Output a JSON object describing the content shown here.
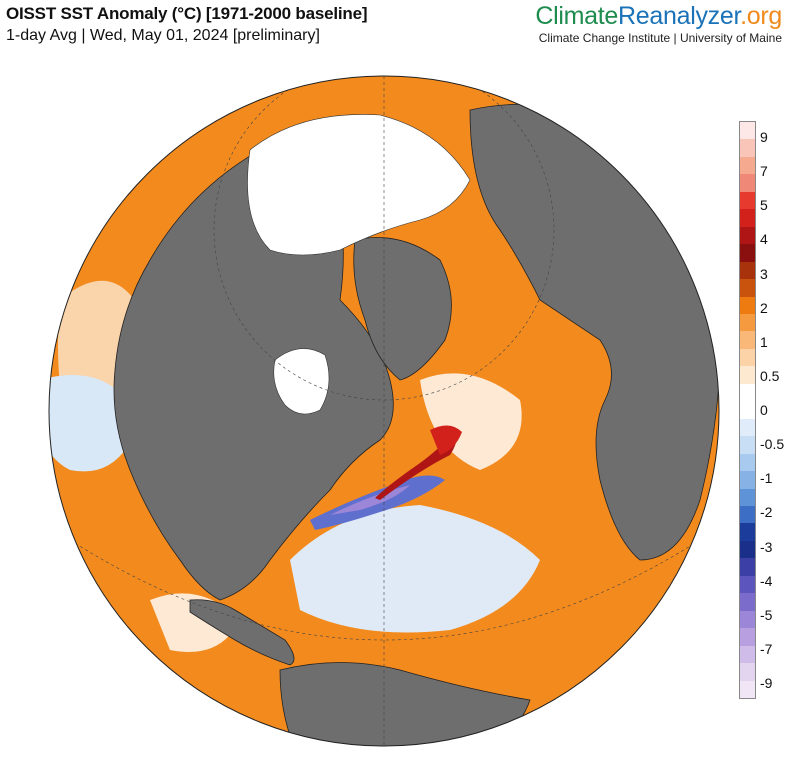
{
  "header": {
    "title": "OISST SST Anomaly (°C) [1971-2000 baseline]",
    "subtitle": "1-day Avg | Wed, May 01, 2024 [preliminary]"
  },
  "brand": {
    "part1": "Climate",
    "part2": "Reanalyzer",
    "part3": ".org",
    "tagline": "Climate Change Institute | University of Maine",
    "colors": {
      "climate": "#1e8c4e",
      "reanalyzer": "#1a72b8",
      "org": "#f08a1c"
    }
  },
  "map": {
    "projection": "orthographic",
    "center": "North Atlantic",
    "colors": {
      "land": "#6e6e6e",
      "sea_ice": "#ffffff",
      "warm": "#f28a1e",
      "cool": "#bcd9f2"
    }
  },
  "legend": {
    "tick_labels": [
      "9",
      "7",
      "5",
      "4",
      "3",
      "2",
      "1",
      "0.5",
      "0",
      "-0.5",
      "-1",
      "-2",
      "-3",
      "-4",
      "-5",
      "-7",
      "-9"
    ],
    "colors": [
      "#fde7e7",
      "#f9c5b8",
      "#f5a98f",
      "#ef8877",
      "#e63a2e",
      "#d2201a",
      "#b01515",
      "#8a1010",
      "#a8320b",
      "#c9520c",
      "#ee7b10",
      "#f59a3f",
      "#f9b877",
      "#fbd3a6",
      "#fde8d0",
      "#ffffff",
      "#ffffff",
      "#e0ecfa",
      "#c8def5",
      "#a9caef",
      "#86b2e6",
      "#5f93d8",
      "#3b6ec4",
      "#1c3c9c",
      "#1a2f8a",
      "#3b3fa6",
      "#5b55bd",
      "#7b6ccc",
      "#9b86d8",
      "#b8a0e0",
      "#d0bce8",
      "#e3d4f0",
      "#f1e6f6"
    ]
  }
}
